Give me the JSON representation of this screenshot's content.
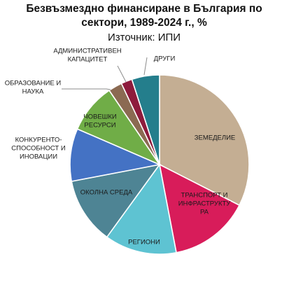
{
  "chart_data": {
    "type": "pie",
    "title": [
      "Безвъзмездно финансиране в България по",
      "сектори, 1989-2024 г., %"
    ],
    "subtitle": "Източник: ИПИ",
    "slices": [
      {
        "label": [
          "ЗЕМЕДЕЛИЕ"
        ],
        "value": 32.5,
        "color": "#c4ae93"
      },
      {
        "label": [
          "ТРАНСПОРТ И",
          "ИНФРАСТРУКТУ",
          "РА"
        ],
        "value": 14.5,
        "color": "#d81c5a"
      },
      {
        "label": [
          "РЕГИОНИ"
        ],
        "value": 13.0,
        "color": "#5ec3d2"
      },
      {
        "label": [
          "ОКОЛНА СРЕДА"
        ],
        "value": 12.0,
        "color": "#4e8494"
      },
      {
        "label": [
          "КОНКУРЕНТО-",
          "СПОСОБНОСТ И",
          "ИНОВАЦИИ"
        ],
        "value": 9.5,
        "color": "#4472c4"
      },
      {
        "label": [
          "ЧОВЕШКИ",
          "РЕСУРСИ"
        ],
        "value": 9.0,
        "color": "#70ad47"
      },
      {
        "label": [
          "ОБРАЗОВАНИЕ И",
          "НАУКА"
        ],
        "value": 2.5,
        "color": "#8b6a52"
      },
      {
        "label": [
          "АДМИНИСТРАТИВЕН",
          "КАПАЦИТЕТ"
        ],
        "value": 2.0,
        "color": "#8e1b3c"
      },
      {
        "label": [
          "ДРУГИ"
        ],
        "value": 5.0,
        "color": "#247e8c"
      }
    ]
  }
}
